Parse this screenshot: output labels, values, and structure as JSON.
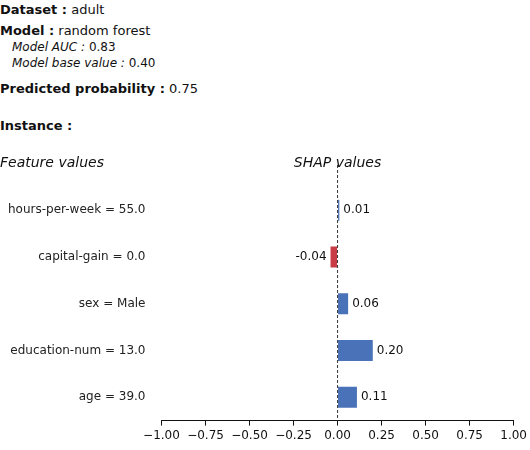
{
  "header": [
    {
      "label": "Dataset :",
      "value": "adult"
    },
    {
      "label": "Model :",
      "value": "random forest",
      "details": [
        {
          "label": "Model AUC :",
          "value": "0.83"
        },
        {
          "label": "Model base value :",
          "value": "0.40"
        }
      ]
    },
    {
      "label": "Predicted probability :",
      "value": "0.75"
    },
    {
      "label": "Instance :"
    }
  ],
  "chart_data": {
    "type": "bar",
    "orientation": "horizontal",
    "x_label": "SHAP values",
    "y_label": "Feature values",
    "categories": [
      "hours-per-week = 55.0",
      "capital-gain = 0.0",
      "sex = Male",
      "education-num = 13.0",
      "age = 39.0"
    ],
    "values": [
      0.01,
      -0.04,
      0.06,
      0.2,
      0.11
    ],
    "value_labels": [
      "0.01",
      "-0.04",
      "0.06",
      "0.20",
      "0.11"
    ],
    "colors": [
      "#4a72b8",
      "#c83c46",
      "#4a72b8",
      "#4a72b8",
      "#4a72b8"
    ],
    "data_labels": true,
    "xlim": [
      -1,
      1
    ],
    "xticks": [
      {
        "value": -1,
        "label": "−1.00"
      },
      {
        "value": -0.75,
        "label": "−0.75"
      },
      {
        "value": -0.5,
        "label": "−0.50"
      },
      {
        "value": -0.25,
        "label": "−0.25"
      },
      {
        "value": 0,
        "label": "0.00"
      },
      {
        "value": 0.25,
        "label": "0.25"
      },
      {
        "value": 0.5,
        "label": "0.50"
      },
      {
        "value": 0.75,
        "label": "0.75"
      },
      {
        "value": 1,
        "label": "1.00"
      }
    ],
    "grid": false
  }
}
